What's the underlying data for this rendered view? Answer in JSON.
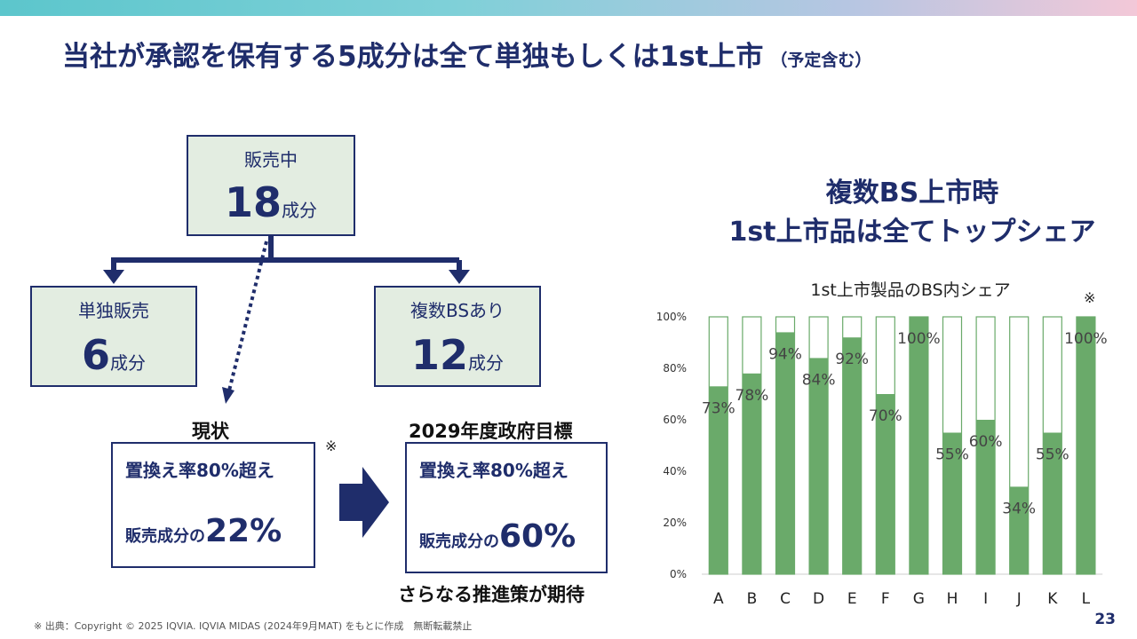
{
  "slide": {
    "title": "当社が承認を保有する5成分は全て単独もしくは1st上市",
    "title_note": "（予定含む）",
    "page_number": "23",
    "source": "※ 出典：Copyright © 2025 IQVIA. IQVIA MIDAS (2024年9月MAT) をもとに作成　無断転載禁止"
  },
  "diagram": {
    "top": {
      "label": "販売中",
      "number": "18",
      "unit": "成分"
    },
    "left": {
      "label": "単独販売",
      "number": "6",
      "unit": "成分"
    },
    "right": {
      "label": "複数BSあり",
      "number": "12",
      "unit": "成分"
    },
    "current": {
      "heading": "現状",
      "note_mark": "※",
      "line1": "置換え率80%超え",
      "line2_prefix": "販売成分の",
      "line2_value": "22%"
    },
    "target": {
      "heading": "2029年度政府目標",
      "line1": "置換え率80%超え",
      "line2_prefix": "販売成分の",
      "line2_value": "60%",
      "footer": "さらなる推進策が期待"
    }
  },
  "chart_heading": {
    "line1": "複数BS上市時",
    "line2": "1st上市品は全てトップシェア"
  },
  "chart_data": {
    "type": "bar",
    "title": "1st上市製品のBS内シェア",
    "note_mark": "※",
    "categories": [
      "A",
      "B",
      "C",
      "D",
      "E",
      "F",
      "G",
      "H",
      "I",
      "J",
      "K",
      "L"
    ],
    "values": [
      73,
      78,
      94,
      84,
      92,
      70,
      100,
      55,
      60,
      34,
      55,
      100
    ],
    "value_labels": [
      "73%",
      "78%",
      "94%",
      "84%",
      "92%",
      "70%",
      "100%",
      "55%",
      "60%",
      "34%",
      "55%",
      "100%"
    ],
    "ylim": [
      0,
      100
    ],
    "yticks": [
      "0%",
      "20%",
      "40%",
      "60%",
      "80%",
      "100%"
    ],
    "colors": {
      "fill": "#6aaa6a",
      "outline": "#6aaa6a"
    }
  }
}
